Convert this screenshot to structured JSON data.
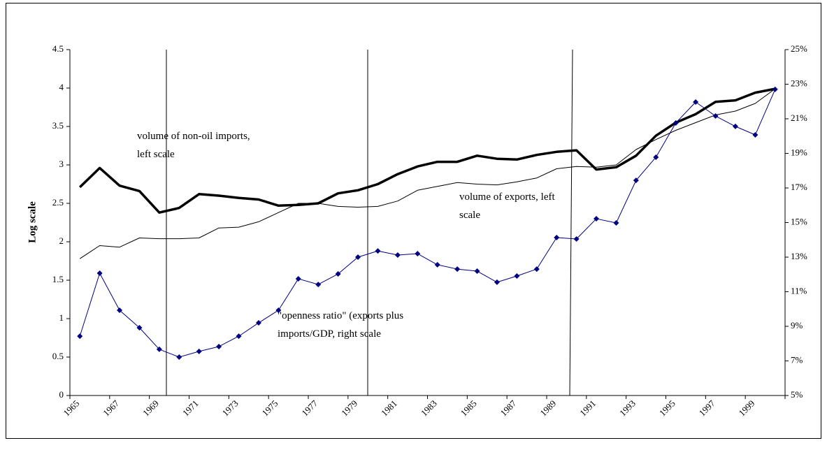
{
  "chart_data": {
    "type": "line",
    "y_label": "Log scale",
    "categories": [
      "1965",
      null,
      "1967",
      null,
      "1969",
      null,
      "1971",
      null,
      "1973",
      null,
      "1975",
      null,
      "1977",
      null,
      "1979",
      null,
      "1981",
      null,
      "1983",
      null,
      "1985",
      null,
      "1987",
      null,
      "1989",
      null,
      "1991",
      null,
      "1993",
      null,
      "1995",
      null,
      "1997",
      null,
      "1999",
      null
    ],
    "ylim": [
      0,
      4.5
    ],
    "yticks": [
      0,
      0.5,
      1,
      1.5,
      2,
      2.5,
      3,
      3.5,
      4,
      4.5
    ],
    "y2lim": [
      5,
      25
    ],
    "y2ticks": [
      {
        "value": 5,
        "label": "5%"
      },
      {
        "value": 7,
        "label": "7%"
      },
      {
        "value": 9,
        "label": "9%"
      },
      {
        "value": 11,
        "label": "11%"
      },
      {
        "value": 13,
        "label": "13%"
      },
      {
        "value": 15,
        "label": "15%"
      },
      {
        "value": 17,
        "label": "17%"
      },
      {
        "value": 19,
        "label": "19%"
      },
      {
        "value": 21,
        "label": "21%"
      },
      {
        "value": 23,
        "label": "23%"
      },
      {
        "value": 25,
        "label": "25%"
      }
    ],
    "series": [
      {
        "color": "#000000",
        "width": 3.5,
        "values": [
          2.71,
          2.96,
          2.73,
          2.66,
          2.38,
          2.44,
          2.62,
          2.6,
          2.57,
          2.55,
          2.47,
          2.48,
          2.5,
          2.63,
          2.67,
          2.75,
          2.88,
          2.98,
          3.04,
          3.04,
          3.12,
          3.08,
          3.07,
          3.13,
          3.17,
          3.19,
          2.94,
          2.97,
          3.12,
          3.38,
          3.55,
          3.66,
          3.82,
          3.84,
          3.94,
          3.99
        ]
      },
      {
        "color": "#000000",
        "width": 1,
        "values": [
          1.78,
          1.95,
          1.93,
          2.05,
          2.04,
          2.04,
          2.05,
          2.18,
          2.19,
          2.26,
          2.38,
          2.5,
          2.5,
          2.46,
          2.45,
          2.46,
          2.53,
          2.67,
          2.72,
          2.77,
          2.75,
          2.74,
          2.78,
          2.83,
          2.95,
          2.98,
          2.97,
          3.0,
          3.2,
          3.33,
          3.45,
          3.55,
          3.65,
          3.7,
          3.8,
          3.99
        ]
      },
      {
        "color": "#000080",
        "width": 1,
        "marker": "diamond",
        "axis": "y2",
        "values": [
          8.43,
          12.07,
          9.93,
          8.92,
          7.67,
          7.22,
          7.55,
          7.83,
          8.43,
          9.2,
          9.93,
          11.75,
          11.42,
          12.03,
          13.0,
          13.36,
          13.12,
          13.2,
          12.56,
          12.31,
          12.19,
          11.55,
          11.91,
          12.31,
          14.13,
          14.05,
          15.22,
          14.98,
          17.44,
          18.78,
          20.76,
          21.97,
          21.16,
          20.56,
          20.07,
          22.7
        ]
      }
    ],
    "annotations": [
      [
        "volume of non-oil imports,",
        "left scale"
      ],
      [
        "volume of exports, left",
        "scale"
      ],
      [
        "\"openness ratio\" (exports plus",
        "imports/GDP, right scale"
      ]
    ]
  }
}
